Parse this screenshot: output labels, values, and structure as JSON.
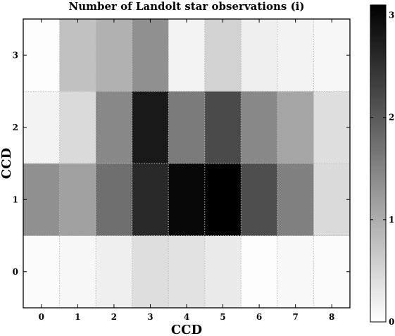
{
  "chart_data": {
    "type": "heatmap",
    "title": "Number of Landolt star observations (i)",
    "xlabel": "CCD",
    "ylabel": "CCD",
    "x": [
      0,
      1,
      2,
      3,
      4,
      5,
      6,
      7,
      8
    ],
    "y": [
      0,
      1,
      2,
      3
    ],
    "x_tick_labels": [
      "0",
      "1",
      "2",
      "3",
      "4",
      "5",
      "6",
      "7",
      "8"
    ],
    "y_tick_labels": [
      "0",
      "1",
      "2",
      "3"
    ],
    "xlim": [
      -0.5,
      8.5
    ],
    "ylim": [
      -0.5,
      3.5
    ],
    "grid": true,
    "colormap": "gray_r",
    "colorbar": {
      "vmin": 0,
      "vmax": 3.1,
      "ticks": [
        "0",
        "1",
        "2",
        "3"
      ],
      "tick_values": [
        0,
        1,
        2,
        3
      ]
    },
    "values": [
      [
        0.05,
        0.1,
        0.2,
        0.4,
        0.35,
        0.25,
        0.02,
        0.08,
        0.05
      ],
      [
        1.35,
        1.15,
        1.75,
        2.6,
        3.0,
        3.1,
        2.15,
        1.55,
        0.45
      ],
      [
        0.15,
        0.45,
        1.45,
        2.8,
        1.6,
        2.2,
        1.45,
        1.1,
        0.4
      ],
      [
        0.02,
        0.75,
        0.95,
        1.35,
        0.15,
        0.55,
        0.2,
        0.15,
        0.1
      ]
    ]
  }
}
